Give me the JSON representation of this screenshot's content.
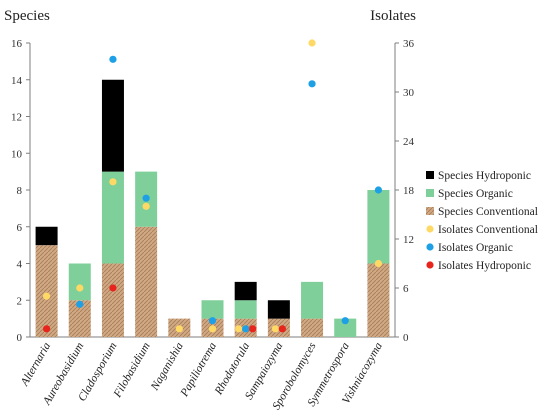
{
  "chart_data": {
    "type": "bar",
    "stacked": true,
    "left_axis_title": "Species",
    "right_axis_title": "Isolates",
    "categories": [
      "Alternaria",
      "Aureobasidium",
      "Cladosporium",
      "Filobasidium",
      "Naganishia",
      "Papiliotrema",
      "Rhodotorula",
      "Sampaiozyma",
      "Sporobolomyces",
      "Symmetrospora",
      "Vishniacozyma"
    ],
    "ylim": [
      0,
      16
    ],
    "yticks": [
      0,
      2,
      4,
      6,
      8,
      10,
      12,
      14,
      16
    ],
    "y2lim": [
      0,
      36
    ],
    "y2ticks": [
      0,
      6,
      12,
      18,
      24,
      30,
      36
    ],
    "grid": false,
    "legend_position": "right",
    "series": [
      {
        "name": "Species Conventional",
        "kind": "bar",
        "axis": "left",
        "color": "#c9a27e",
        "values": [
          5,
          2,
          4,
          6,
          1,
          1,
          1,
          1,
          1,
          0,
          4
        ]
      },
      {
        "name": "Species Organic",
        "kind": "bar",
        "axis": "left",
        "color": "#7fcf9a",
        "values": [
          0,
          2,
          5,
          3,
          0,
          1,
          1,
          0,
          2,
          1,
          4
        ]
      },
      {
        "name": "Species Hydroponic",
        "kind": "bar",
        "axis": "left",
        "color": "#000000",
        "values": [
          1,
          0,
          5,
          0,
          0,
          0,
          1,
          1,
          0,
          0,
          0
        ]
      },
      {
        "name": "Isolates Conventional",
        "kind": "point",
        "axis": "right",
        "color": "#ffd966",
        "values": [
          5,
          6,
          19,
          16,
          1,
          1,
          1,
          1,
          36,
          null,
          9
        ]
      },
      {
        "name": "Isolates Organic",
        "kind": "point",
        "axis": "right",
        "color": "#1ea0e6",
        "values": [
          null,
          4,
          34,
          17,
          null,
          2,
          1,
          null,
          31,
          2,
          18
        ]
      },
      {
        "name": "Isolates Hydroponic",
        "kind": "point",
        "axis": "right",
        "color": "#e8251d",
        "values": [
          1,
          null,
          6,
          null,
          null,
          null,
          1,
          1,
          null,
          null,
          null
        ]
      }
    ],
    "legend_order": [
      "Species Hydroponic",
      "Species Organic",
      "Species Conventional",
      "Isolates Conventional",
      "Isolates Organic",
      "Isolates Hydroponic"
    ]
  }
}
